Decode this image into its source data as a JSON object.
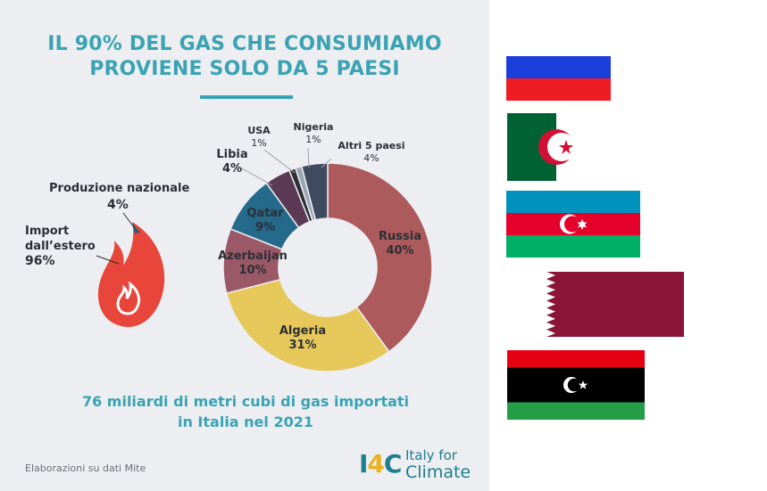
{
  "header": {
    "title_line1": "IL 90% DEL GAS CHE CONSUMIAMO",
    "title_line2": "PROVIENE SOLO DA 5 PAESI"
  },
  "subtitle_line1": "76 miliardi di metri cubi di gas importati",
  "subtitle_line2": "in Italia nel 2021",
  "footer_note": "Elaborazioni su dati Mite",
  "logo": {
    "mark_left": "I",
    "mark_mid": "4",
    "mark_right": "C",
    "line1": "Italy for",
    "line2": "Climate"
  },
  "source_split": {
    "national_label": "Produzione nazionale",
    "national_value": "4%",
    "import_label_line1": "Import",
    "import_label_line2": "dall’estero",
    "import_value": "96%"
  },
  "chart_data": {
    "type": "pie",
    "variant": "donut",
    "title": "",
    "slices": [
      {
        "label": "Russia",
        "value": 40,
        "display": "40%",
        "color": "#ad5a5c"
      },
      {
        "label": "Algeria",
        "value": 31,
        "display": "31%",
        "color": "#e6c85a"
      },
      {
        "label": "Azerbaijan",
        "value": 10,
        "display": "10%",
        "color": "#9b5867"
      },
      {
        "label": "Qatar",
        "value": 9,
        "display": "9%",
        "color": "#256a8b"
      },
      {
        "label": "Libia",
        "value": 4,
        "display": "4%",
        "color": "#5a3a55"
      },
      {
        "label": "USA",
        "value": 1,
        "display": "1%",
        "color": "#2c3035"
      },
      {
        "label": "Nigeria",
        "value": 1,
        "display": "1%",
        "color": "#9aa7b3"
      },
      {
        "label": "Altri 5 paesi",
        "value": 4,
        "display": "4%",
        "color": "#3f4a61"
      }
    ]
  },
  "flags": [
    {
      "country": "Russia",
      "icon": "russia-flag"
    },
    {
      "country": "Algeria",
      "icon": "algeria-flag"
    },
    {
      "country": "Azerbaijan",
      "icon": "azerbaijan-flag"
    },
    {
      "country": "Qatar",
      "icon": "qatar-flag"
    },
    {
      "country": "Libia",
      "icon": "libya-flag"
    }
  ],
  "colors": {
    "accent": "#3aa3b3",
    "flame": "#e8463a",
    "panel_bg": "#eceef1"
  }
}
